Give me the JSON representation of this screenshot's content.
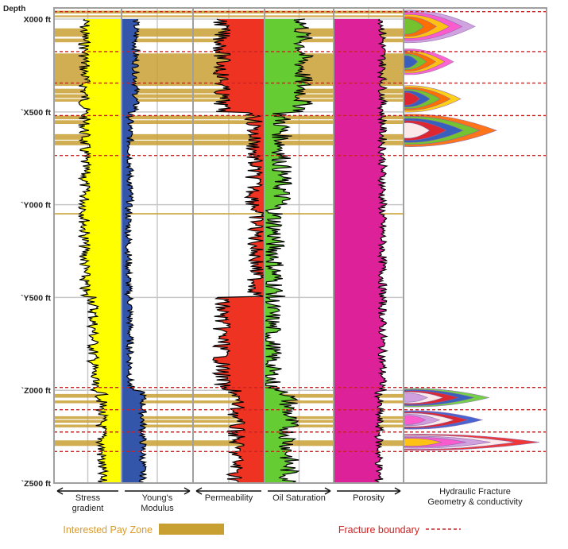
{
  "chart_data": {
    "type": "well-log",
    "depth_header": "Depth",
    "depth_ticks": [
      {
        "label": "X000 ft",
        "depth": 0
      },
      {
        "label": "`X500 ft",
        "depth": 500
      },
      {
        "label": "`Y000 ft",
        "depth": 1000
      },
      {
        "label": "`Y500 ft",
        "depth": 1500
      },
      {
        "label": "`Z000 ft",
        "depth": 2000
      },
      {
        "label": "`Z500 ft",
        "depth": 2500
      }
    ],
    "depth_range": [
      -60,
      2500
    ],
    "tracks": [
      {
        "name": "stress",
        "label_lines": [
          "Stress",
          "gradient"
        ],
        "arrow": "left",
        "fill_color": "#ffff00"
      },
      {
        "name": "youngs",
        "label_lines": [
          "Young's",
          "Modulus"
        ],
        "arrow": "right",
        "fill_color": "#3355aa"
      },
      {
        "name": "permeability",
        "label_lines": [
          "Permeability"
        ],
        "arrow": "left",
        "fill_color": "#ee3322"
      },
      {
        "name": "oil-saturation",
        "label_lines": [
          "Oil Saturation"
        ],
        "arrow": "right",
        "fill_color": "#66cc33"
      },
      {
        "name": "porosity",
        "label_lines": [
          "Porosity"
        ],
        "arrow": "right",
        "fill_color": "#dd2299"
      },
      {
        "name": "hydraulic-fracture",
        "label_lines": [
          "Hydraulic Fracture",
          "Geometry & conductivity"
        ],
        "arrow": "none",
        "fill_color": ""
      }
    ],
    "pay_zones": [
      [
        -45,
        -30
      ],
      [
        -20,
        -10
      ],
      [
        50,
        95
      ],
      [
        105,
        125
      ],
      [
        185,
        360
      ],
      [
        375,
        400
      ],
      [
        405,
        425
      ],
      [
        430,
        445
      ],
      [
        520,
        540
      ],
      [
        545,
        565
      ],
      [
        620,
        650
      ],
      [
        655,
        680
      ],
      [
        1045,
        1053
      ],
      [
        2020,
        2040
      ],
      [
        2055,
        2070
      ],
      [
        2140,
        2155
      ],
      [
        2160,
        2175
      ],
      [
        2185,
        2200
      ],
      [
        2270,
        2300
      ]
    ],
    "fracture_boundaries": [
      -40,
      175,
      345,
      520,
      735,
      1985,
      2105,
      2225,
      2330
    ],
    "fractures": [
      {
        "top": -40,
        "bottom": 175,
        "peak_depth": 40,
        "extent": 0.5
      },
      {
        "top": 175,
        "bottom": 345,
        "peak_depth": 230,
        "extent": 0.35
      },
      {
        "top": 345,
        "bottom": 520,
        "peak_depth": 430,
        "extent": 0.4
      },
      {
        "top": 520,
        "bottom": 735,
        "peak_depth": 600,
        "extent": 0.65
      },
      {
        "top": 1985,
        "bottom": 2105,
        "peak_depth": 2040,
        "extent": 0.6
      },
      {
        "top": 2105,
        "bottom": 2225,
        "peak_depth": 2160,
        "extent": 0.55
      },
      {
        "top": 2225,
        "bottom": 2330,
        "peak_depth": 2280,
        "extent": 0.95
      }
    ],
    "log_intervals": [
      {
        "depth_from": 0,
        "depth_to": 500,
        "stress": 0.55,
        "youngs": 0.2,
        "permeability": 0.6,
        "oil_saturation": 0.55,
        "porosity": 0.7
      },
      {
        "depth_from": 500,
        "depth_to": 1000,
        "stress": 0.55,
        "youngs": 0.12,
        "permeability": 0.15,
        "oil_saturation": 0.25,
        "porosity": 0.7
      },
      {
        "depth_from": 1000,
        "depth_to": 1500,
        "stress": 0.55,
        "youngs": 0.1,
        "permeability": 0.12,
        "oil_saturation": 0.15,
        "porosity": 0.7
      },
      {
        "depth_from": 1500,
        "depth_to": 2000,
        "stress": 0.42,
        "youngs": 0.12,
        "permeability": 0.6,
        "oil_saturation": 0.1,
        "porosity": 0.7
      },
      {
        "depth_from": 2000,
        "depth_to": 2500,
        "stress": 0.3,
        "youngs": 0.3,
        "permeability": 0.4,
        "oil_saturation": 0.35,
        "porosity": 0.65
      }
    ]
  },
  "legend": {
    "pay_zone_label": "Interested Pay Zone",
    "pay_zone_color": "#c8a032",
    "fracture_label": "Fracture boundary",
    "fracture_color": "#cc2222"
  }
}
